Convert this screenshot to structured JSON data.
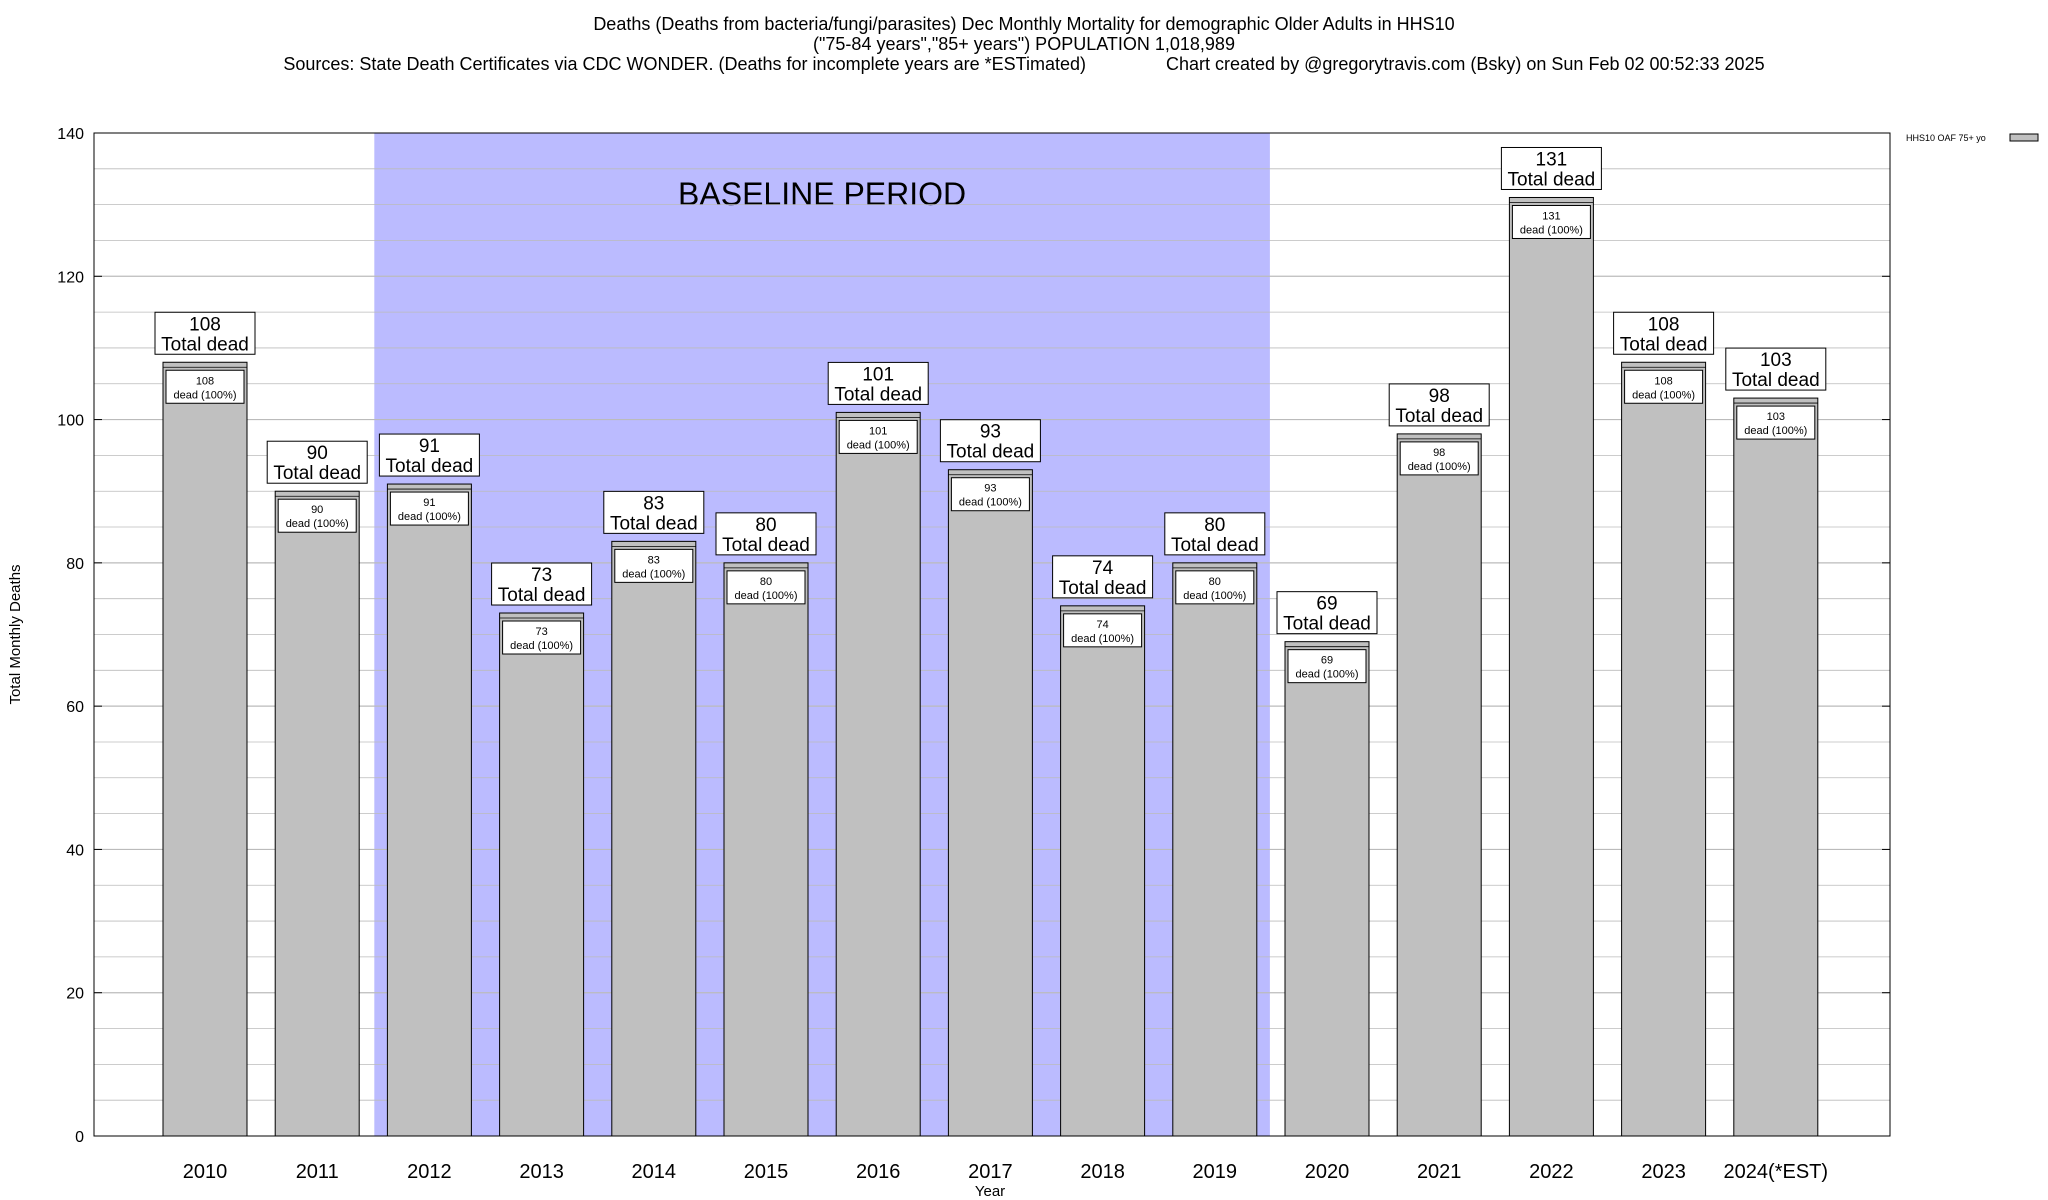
{
  "title": {
    "line1": "Deaths (Deaths from bacteria/fungi/parasites) Dec Monthly Mortality for demographic Older Adults in HHS10",
    "line2": "(\"75-84 years\",\"85+ years\") POPULATION 1,018,989",
    "line3": "Sources: State Death Certificates via CDC WONDER. (Deaths for incomplete years are *ESTimated)                Chart created by @gregorytravis.com (Bsky) on Sun Feb 02 00:52:33 2025"
  },
  "chart_data": {
    "type": "bar",
    "categories": [
      "2010",
      "2011",
      "2012",
      "2013",
      "2014",
      "2015",
      "2016",
      "2017",
      "2018",
      "2019",
      "2020",
      "2021",
      "2022",
      "2023",
      "2024(*EST)"
    ],
    "values": [
      108,
      90,
      91,
      73,
      83,
      80,
      101,
      93,
      74,
      80,
      69,
      98,
      131,
      108,
      103
    ],
    "series": [
      {
        "name": "HHS10 OAF 75+ yo",
        "values": [
          108,
          90,
          91,
          73,
          83,
          80,
          101,
          93,
          74,
          80,
          69,
          98,
          131,
          108,
          103
        ]
      }
    ],
    "xlabel": "Year",
    "ylabel": "Total Monthly Deaths",
    "ylim": [
      0,
      140
    ],
    "yticks": [
      0,
      20,
      40,
      60,
      80,
      100,
      120,
      140
    ],
    "grid": true,
    "legend_position": "top-right",
    "baseline_period": {
      "label": "BASELINE PERIOD",
      "start": "2012",
      "end": "2019"
    },
    "top_label_suffix": "Total dead",
    "inner_label_suffix": "dead (100%)",
    "colors": {
      "bar": "#c0c0c0",
      "baseline": "#bbbbff",
      "grid": "#bbbbbb"
    }
  }
}
